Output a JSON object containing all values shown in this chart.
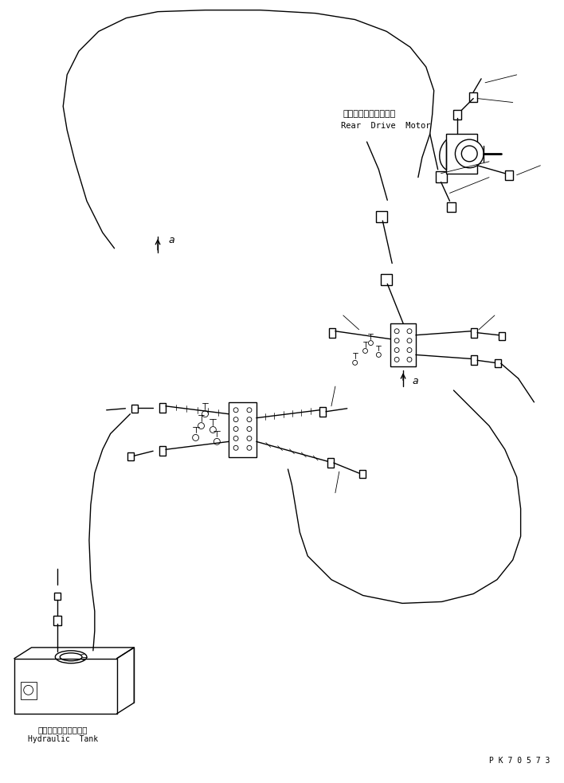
{
  "bg_color": "#ffffff",
  "line_color": "#000000",
  "line_width": 1.0,
  "thin_line": 0.6,
  "label_rear_drive_jp": "リヤードライブモータ",
  "label_rear_drive_en": "Rear  Drive  Motor",
  "label_hydraulic_jp": "ハイドロリックタンク",
  "label_hydraulic_en": "Hydraulic  Tank",
  "label_pk": "P K 7 0 5 7 3",
  "label_a": "a",
  "font_size_label": 7,
  "font_size_part": 7.5,
  "font_size_pk": 7
}
